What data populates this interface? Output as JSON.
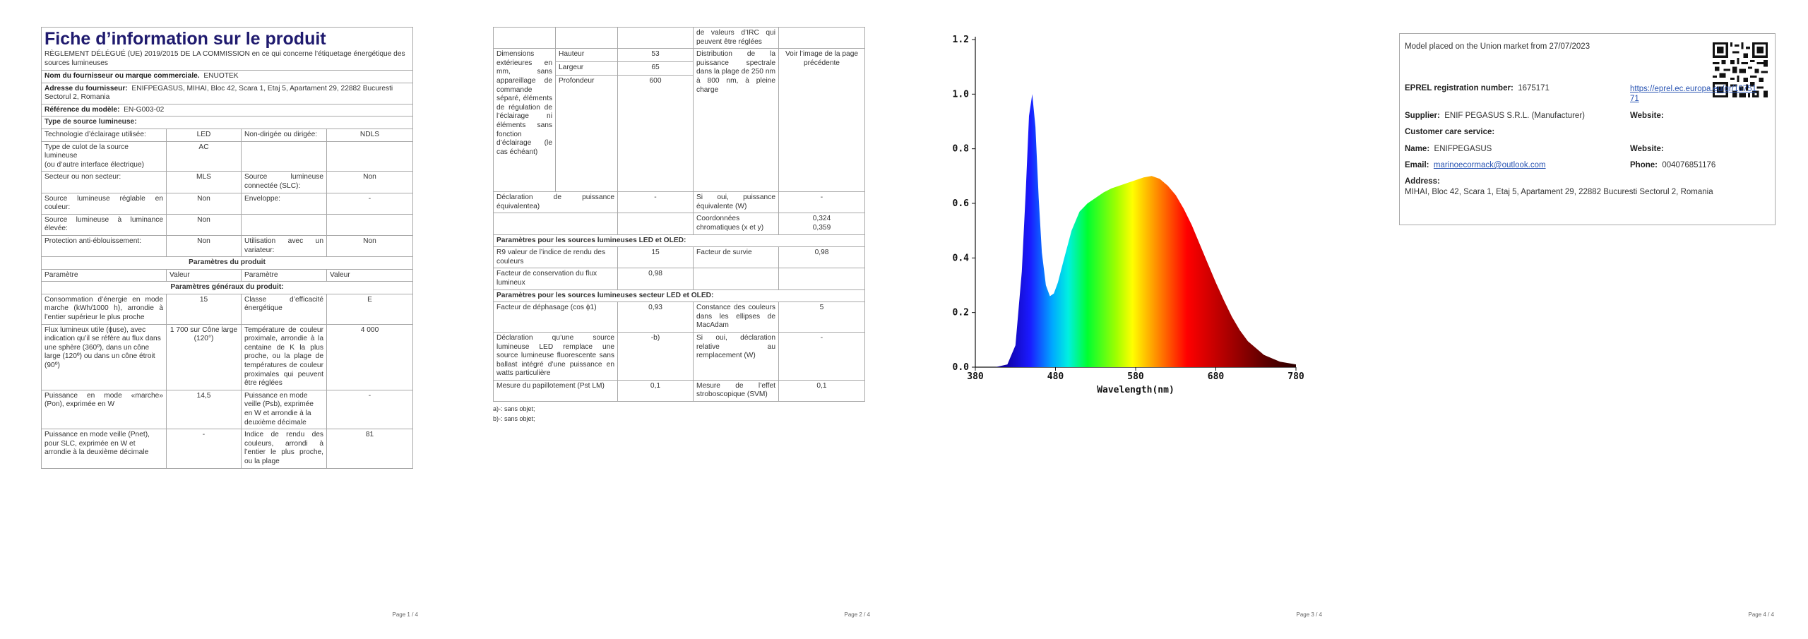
{
  "page1": {
    "title": "Fiche d’information sur le produit",
    "subtitle": "RÈGLEMENT DÉLÉGUÉ (UE) 2019/2015 DE LA COMMISSION en ce qui concerne l’étiquetage énergétique des sources lumineuses",
    "supplier_label": "Nom du fournisseur ou marque commerciale.",
    "supplier_value": "ENUOTEK",
    "address_label": "Adresse du fournisseur:",
    "address_value": "ENIFPEGASUS, MIHAI, Bloc 42, Scara 1, Etaj 5, Apartament 29, 22882 Bucuresti Sectorul 2, Romania",
    "model_label": "Référence du modèle:",
    "model_value": "EN-G003-02",
    "type_label": "Type de source lumineuse:",
    "type_rows": [
      {
        "l1": "Technologie d’éclairage utilisée:",
        "v1": "LED",
        "l2": "Non-dirigée ou dirigée:",
        "v2": "NDLS"
      },
      {
        "l1": "Type de culot de la source lumineuse\n(ou d’autre interface électrique)",
        "v1": "AC",
        "l2": "",
        "v2": ""
      },
      {
        "l1": "Secteur ou non secteur:",
        "v1": "MLS",
        "l2": "Source lumineuse connectée (SLC):",
        "v2": "Non"
      },
      {
        "l1": "Source lumineuse réglable en couleur:",
        "v1": "Non",
        "l2": "Enveloppe:",
        "v2": "-"
      },
      {
        "l1": "Source lumineuse à luminance élevée:",
        "v1": "Non",
        "l2": "",
        "v2": ""
      },
      {
        "l1": "Protection anti-éblouissement:",
        "v1": "Non",
        "l2": "Utilisation avec un variateur:",
        "v2": "Non"
      }
    ],
    "params_header": "Paramètres du produit",
    "col_param": "Paramètre",
    "col_value": "Valeur",
    "general_header": "Paramètres généraux du produit:",
    "general_rows": [
      {
        "l1": "Consommation d’énergie en mode marche (kWh/1000 h), arrondie à l’entier supérieur le plus proche",
        "v1": "15",
        "l2": "Classe d’efficacité énergétique",
        "v2": "E"
      },
      {
        "l1": "Flux lumineux utile (ɸuse), avec indication qu’il se réfère au flux dans une sphère (360º), dans un cône large (120º) ou dans un cône étroit (90º)",
        "v1": "1 700 sur Cône large (120°)",
        "l2": "Température de couleur proximale, arrondie à la centaine de K la plus proche, ou la plage de températures de couleur proximales qui peuvent être réglées",
        "v2": "4 000"
      },
      {
        "l1": "Puissance en mode «marche» (Pon), exprimée en W",
        "v1": "14,5",
        "l2": "Puissance en mode veille (Psb), exprimée en W et arrondie à la deuxième décimale",
        "v2": "-"
      },
      {
        "l1": "Puissance en mode veille (Pnet), pour SLC, exprimée en W et arrondie à la deuxième décimale",
        "v1": "-",
        "l2": "Indice de rendu des couleurs, arrondi à l’entier le plus proche, ou la plage",
        "v2": "81"
      }
    ],
    "page_number": "Page 1 / 4"
  },
  "page2": {
    "cont_text": "de valeurs d’IRC qui peuvent être réglées",
    "dim_label": "Dimensions extérieures en mm, sans appareillage de commande séparé, éléments de régulation de l’éclairage ni éléments sans fonction d’éclairage (le cas échéant)",
    "dims": [
      {
        "name": "Hauteur",
        "value": "53"
      },
      {
        "name": "Largeur",
        "value": "65"
      },
      {
        "name": "Profondeur",
        "value": "600"
      }
    ],
    "spd_label": "Distribution de la puissance spectrale dans la plage de 250 nm à 800 nm, à pleine charge",
    "spd_value": "Voir l’image de la page précédente",
    "equiv_label": "Déclaration de puissance équivalentea)",
    "equiv_value": "-",
    "equiv_w_label": "Si oui, puissance équivalente (W)",
    "equiv_w_value": "-",
    "coord_label": "Coordonnées chromatiques (x et y)",
    "coord_value": "0,324\n0,359",
    "led_header": "Paramètres pour les sources lumineuses LED et OLED:",
    "r9_label": "R9 valeur de l’indice de rendu des couleurs",
    "r9_value": "15",
    "survival_label": "Facteur de survie",
    "survival_value": "0,98",
    "lumen_label": "Facteur de conservation du flux lumineux",
    "lumen_value": "0,98",
    "mains_header": "Paramètres pour les sources lumineuses secteur LED et OLED:",
    "phase_label": "Facteur de déphasage (cos ϕ1)",
    "phase_value": "0,93",
    "macadam_label": "Constance des couleurs dans les ellipses de MacAdam",
    "macadam_value": "5",
    "replace_label": "Déclaration qu’une source lumineuse LED remplace une source lumineuse fluorescente sans ballast intégré d’une puissance en watts particulière",
    "replace_value": "-b)",
    "replace_w_label": "Si oui, déclaration relative au remplacement (W)",
    "replace_w_value": "-",
    "flicker_label": "Mesure du papillotement (Pst LM)",
    "flicker_value": "0,1",
    "strobo_label": "Mesure de l’effet stroboscopique (SVM)",
    "strobo_value": "0,1",
    "footnote_a": "a)-: sans objet;",
    "footnote_b": "b)-: sans objet;",
    "page_number": "Page 2 / 4"
  },
  "page3": {
    "page_number": "Page 3 / 4"
  },
  "chart_data": {
    "type": "area",
    "xlabel": "Wavelength(nm)",
    "ylabel": "",
    "xlim": [
      380,
      780
    ],
    "ylim": [
      0,
      1.2
    ],
    "xticks": [
      "380",
      "480",
      "580",
      "680",
      "780"
    ],
    "yticks": [
      "0.0",
      "0.2",
      "0.4",
      "0.6",
      "0.8",
      "1.0",
      "1.2"
    ],
    "grid": false,
    "x": [
      380,
      405,
      420,
      430,
      438,
      443,
      447,
      451,
      455,
      459,
      463,
      468,
      473,
      478,
      483,
      490,
      500,
      510,
      520,
      530,
      540,
      550,
      560,
      570,
      580,
      590,
      600,
      610,
      620,
      630,
      640,
      650,
      660,
      670,
      680,
      690,
      700,
      710,
      720,
      740,
      760,
      780
    ],
    "y": [
      0.0,
      0.0,
      0.01,
      0.08,
      0.35,
      0.65,
      0.92,
      1.0,
      0.88,
      0.62,
      0.42,
      0.3,
      0.26,
      0.27,
      0.31,
      0.39,
      0.5,
      0.57,
      0.6,
      0.62,
      0.64,
      0.655,
      0.665,
      0.675,
      0.685,
      0.695,
      0.7,
      0.69,
      0.665,
      0.63,
      0.58,
      0.52,
      0.45,
      0.38,
      0.31,
      0.245,
      0.185,
      0.135,
      0.095,
      0.045,
      0.02,
      0.01
    ]
  },
  "page4": {
    "market": "Model placed on the Union market from 27/07/2023",
    "eprel_label": "EPREL registration number:",
    "eprel_value": "1675171",
    "eprel_link": "https://eprel.ec.europa.eu/qr/1675171",
    "supplier_label": "Supplier:",
    "supplier_value": "ENIF PEGASUS S.R.L. (Manufacturer)",
    "website_label": "Website:",
    "care_label": "Customer care service:",
    "name_label": "Name:",
    "name_value": "ENIFPEGASUS",
    "website2_label": "Website:",
    "email_label": "Email:",
    "email_value": "marinoecormack@outlook.com",
    "phone_label": "Phone:",
    "phone_value": "004076851176",
    "address_label": "Address:",
    "address_value": "MIHAI, Bloc 42, Scara 1, Etaj 5, Apartament 29, 22882 Bucuresti Sectorul 2, Romania",
    "qr_icon": "qr-code-icon",
    "page_number": "Page 4 / 4"
  }
}
